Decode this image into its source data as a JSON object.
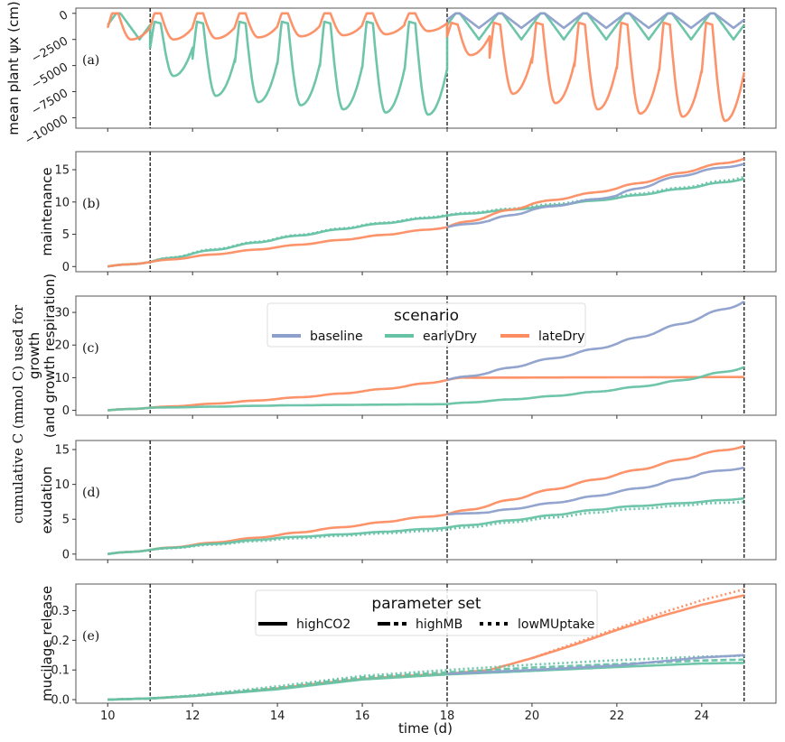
{
  "chart_data": {
    "type": "line",
    "shared_x": {
      "label": "time (d)",
      "range": [
        9.25,
        25.75
      ],
      "ticks": [
        10,
        12,
        14,
        16,
        18,
        20,
        22,
        24
      ],
      "tick_labels": [
        "10",
        "12",
        "14",
        "16",
        "18",
        "20",
        "22",
        "24"
      ],
      "vlines": [
        11,
        18,
        25
      ]
    },
    "shared_ylabel": "cumulative C (mmol C) used for",
    "colors": {
      "baseline": "#8da0cb",
      "earlyDry": "#66c2a5",
      "lateDry": "#fc8d62",
      "vline": "#000000",
      "axis": "#555555"
    },
    "legends": {
      "scenario": {
        "title": "scenario",
        "entries": [
          "baseline",
          "earlyDry",
          "lateDry"
        ],
        "placement": "upper-center (panel c)"
      },
      "parameter_set": {
        "title": "parameter set",
        "entries": [
          "highCO2",
          "highMB",
          "lowMUptake"
        ],
        "styles": [
          "solid",
          "dashed",
          "dotted"
        ],
        "placement": "upper-center (panel e)"
      }
    },
    "panels": [
      {
        "tag": "(a)",
        "ylabel": "mean plant ψx (cm)",
        "ylim": [
          -11000,
          500
        ],
        "yticks": [
          0,
          -2500,
          -5000,
          -7500,
          -10000
        ],
        "ytick_labels": [
          "0",
          "−2500",
          "−5000",
          "−7500",
          "−10000"
        ],
        "kind": "diurnal",
        "series": [
          {
            "name": "earlyDry",
            "segments": [
              {
                "start": 10,
                "end": 11,
                "max": 0,
                "min": -2500
              },
              {
                "start": 11,
                "end": 18,
                "max": -800,
                "min": [
                  -6000,
                  -7900,
                  -8500,
                  -8800,
                  -9200,
                  -9500,
                  -9700,
                  -10000
                ]
              },
              {
                "start": 18,
                "end": 25,
                "max": 0,
                "min": -2500
              }
            ]
          },
          {
            "name": "lateDry",
            "segments": [
              {
                "start": 10,
                "end": 18,
                "max": 0,
                "min": [
                  -2500,
                  -2500,
                  -2400,
                  -2300,
                  -2200,
                  -2100,
                  -2000,
                  -1700
                ]
              },
              {
                "start": 18,
                "end": 25,
                "max": -900,
                "min": [
                  -4000,
                  -7700,
                  -8600,
                  -9200,
                  -9600,
                  -9900,
                  -10300
                ]
              }
            ]
          },
          {
            "name": "baseline",
            "segments": [
              {
                "start": 18,
                "end": 25,
                "max": 0,
                "min": -1400
              }
            ]
          }
        ]
      },
      {
        "tag": "(b)",
        "ylabel": "maintenance",
        "ylim": [
          -0.8,
          17.8
        ],
        "yticks": [
          0,
          5,
          10,
          15
        ],
        "ytick_labels": [
          "0",
          "5",
          "10",
          "15"
        ],
        "kind": "cumulative",
        "series": [
          {
            "name": "earlyDry",
            "style": "solid",
            "x": [
              10,
              11,
              12,
              14,
              16,
              18,
              20,
              22,
              24,
              25
            ],
            "y": [
              0,
              0.7,
              2.0,
              4.3,
              6.3,
              7.9,
              9.1,
              10.6,
              12.5,
              13.6
            ]
          },
          {
            "name": "earlyDry",
            "style": "dotted",
            "x": [
              10,
              11,
              12,
              14,
              16,
              18,
              20,
              22,
              24,
              25
            ],
            "y": [
              0,
              0.7,
              2.1,
              4.4,
              6.4,
              8.0,
              9.3,
              10.8,
              12.7,
              13.9
            ]
          },
          {
            "name": "lateDry",
            "style": "solid",
            "x": [
              10,
              11,
              12,
              14,
              16,
              18,
              19,
              20,
              22,
              24,
              25
            ],
            "y": [
              0,
              0.7,
              1.5,
              3.0,
              4.5,
              6.1,
              7.9,
              9.7,
              12.1,
              15.3,
              16.7
            ]
          },
          {
            "name": "baseline",
            "style": "solid",
            "x": [
              18,
              19,
              20,
              22,
              23,
              24,
              25
            ],
            "y": [
              6.1,
              7.1,
              8.8,
              11.0,
              13.2,
              14.8,
              15.9
            ]
          }
        ]
      },
      {
        "tag": "(c)",
        "ylabel": "growth\n(and growth respiration)",
        "ylim": [
          -1.5,
          35
        ],
        "yticks": [
          0,
          10,
          20,
          30
        ],
        "ytick_labels": [
          "0",
          "10",
          "20",
          "30"
        ],
        "kind": "cumulative",
        "series": [
          {
            "name": "lateDry",
            "style": "solid",
            "x": [
              10,
              11,
              12,
              13,
              14,
              15,
              16,
              17,
              18,
              18.4,
              25
            ],
            "y": [
              0,
              0.8,
              1.6,
              2.5,
              3.5,
              4.5,
              5.8,
              7.3,
              9.3,
              10.0,
              10.2
            ]
          },
          {
            "name": "earlyDry",
            "style": "solid",
            "x": [
              10,
              11,
              12,
              14,
              16,
              18,
              19,
              20,
              21,
              22,
              23,
              24,
              25
            ],
            "y": [
              0,
              0.8,
              1.0,
              1.5,
              1.7,
              1.9,
              2.9,
              3.8,
              5.0,
              6.4,
              8.1,
              10.3,
              13.2
            ]
          },
          {
            "name": "baseline",
            "style": "solid",
            "x": [
              18,
              19,
              20,
              21,
              22,
              23,
              24,
              25
            ],
            "y": [
              9.3,
              11.6,
              14.6,
              17.3,
              20.4,
              24.3,
              28.6,
              33.3
            ]
          }
        ]
      },
      {
        "tag": "(d)",
        "ylabel": "exudation",
        "ylim": [
          -0.8,
          16.3
        ],
        "yticks": [
          0,
          5,
          10,
          15
        ],
        "ytick_labels": [
          "0",
          "5",
          "10",
          "15"
        ],
        "kind": "cumulative",
        "series": [
          {
            "name": "lateDry",
            "style": "solid",
            "x": [
              10,
              11,
              12,
              13,
              14,
              15,
              16,
              17,
              18,
              19,
              20,
              21,
              22,
              23,
              24,
              25
            ],
            "y": [
              0,
              0.6,
              1.3,
              2.0,
              2.7,
              3.5,
              4.2,
              5.0,
              5.7,
              7.0,
              8.6,
              10.0,
              11.4,
              12.8,
              14.3,
              15.5
            ]
          },
          {
            "name": "baseline",
            "style": "solid",
            "x": [
              18,
              19,
              20,
              21,
              22,
              23,
              24,
              25
            ],
            "y": [
              5.7,
              6.0,
              6.9,
              7.8,
              8.9,
              10.0,
              11.6,
              12.4
            ]
          },
          {
            "name": "earlyDry",
            "style": "solid",
            "x": [
              10,
              11,
              12,
              14,
              16,
              18,
              19,
              20,
              21,
              22,
              23,
              24,
              25
            ],
            "y": [
              0,
              0.6,
              1.2,
              2.3,
              3.0,
              3.8,
              4.5,
              5.2,
              6.0,
              6.7,
              7.1,
              7.5,
              8.0
            ]
          },
          {
            "name": "earlyDry",
            "style": "dotted",
            "x": [
              10,
              11,
              12,
              14,
              16,
              18,
              19,
              20,
              21,
              22,
              23,
              24,
              25
            ],
            "y": [
              0,
              0.6,
              1.1,
              2.1,
              2.8,
              3.5,
              4.2,
              4.9,
              5.6,
              6.3,
              6.7,
              7.2,
              7.5
            ]
          }
        ]
      },
      {
        "tag": "(e)",
        "ylabel": "mucilage release",
        "ylim": [
          -0.012,
          0.39
        ],
        "yticks": [
          0.0,
          0.1,
          0.2,
          0.3
        ],
        "ytick_labels": [
          "0.0",
          "0.1",
          "0.2",
          "0.3"
        ],
        "kind": "cumulative",
        "series": [
          {
            "name": "lateDry",
            "style": "solid",
            "x": [
              10,
              11,
              12,
              13,
              14,
              15,
              16,
              17,
              18,
              19,
              20,
              21,
              22,
              23,
              24,
              25
            ],
            "y": [
              0,
              0.004,
              0.012,
              0.024,
              0.038,
              0.055,
              0.07,
              0.08,
              0.087,
              0.1,
              0.14,
              0.185,
              0.235,
              0.28,
              0.32,
              0.352
            ]
          },
          {
            "name": "lateDry",
            "style": "dotted",
            "x": [
              20,
              21,
              22,
              23,
              24,
              25
            ],
            "y": [
              0.14,
              0.19,
              0.24,
              0.29,
              0.335,
              0.372
            ]
          },
          {
            "name": "earlyDry",
            "style": "solid",
            "x": [
              10,
              11,
              12,
              14,
              16,
              18,
              20,
              22,
              24,
              25
            ],
            "y": [
              0,
              0.004,
              0.012,
              0.035,
              0.068,
              0.085,
              0.097,
              0.11,
              0.122,
              0.124
            ]
          },
          {
            "name": "earlyDry",
            "style": "dashed",
            "x": [
              10,
              11,
              12,
              14,
              16,
              18,
              20,
              22,
              24,
              25
            ],
            "y": [
              0,
              0.004,
              0.013,
              0.04,
              0.075,
              0.092,
              0.108,
              0.12,
              0.132,
              0.135
            ]
          },
          {
            "name": "earlyDry",
            "style": "dotted",
            "x": [
              10,
              11,
              12,
              14,
              16,
              18,
              20,
              22,
              24,
              25
            ],
            "y": [
              0,
              0.004,
              0.014,
              0.045,
              0.08,
              0.1,
              0.118,
              0.133,
              0.145,
              0.148
            ]
          },
          {
            "name": "baseline",
            "style": "solid",
            "x": [
              18,
              20,
              22,
              24,
              25
            ],
            "y": [
              0.087,
              0.1,
              0.115,
              0.142,
              0.15
            ]
          }
        ]
      }
    ]
  }
}
